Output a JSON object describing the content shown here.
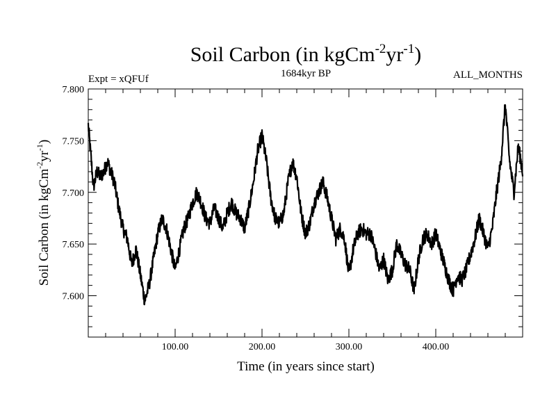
{
  "chart_data": {
    "type": "line",
    "title": "Soil Carbon (in kgCm",
    "title_sup1": "-2",
    "title_mid": "yr",
    "title_sup2": "-1",
    "title_end": ")",
    "subtitle_left": "Expt = xQFUf",
    "subtitle_center": "1684kyr BP",
    "subtitle_right": "ALL_MONTHS",
    "xlabel": "Time (in years since start)",
    "ylabel": "Soil Carbon (in kgCm",
    "ylabel_sup1": "-2",
    "ylabel_mid": "yr",
    "ylabel_sup2": "-1",
    "ylabel_end": ")",
    "xlim": [
      0,
      500
    ],
    "ylim": [
      7.56,
      7.8
    ],
    "x_ticks": [
      {
        "value": 100,
        "label": "100.00"
      },
      {
        "value": 200,
        "label": "200.00"
      },
      {
        "value": 300,
        "label": "300.00"
      },
      {
        "value": 400,
        "label": "400.00"
      }
    ],
    "y_ticks": [
      {
        "value": 7.6,
        "label": "7.600"
      },
      {
        "value": 7.65,
        "label": "7.650"
      },
      {
        "value": 7.7,
        "label": "7.700"
      },
      {
        "value": 7.75,
        "label": "7.750"
      },
      {
        "value": 7.8,
        "label": "7.800"
      }
    ],
    "series": [
      {
        "name": "Soil Carbon",
        "color": "#000000",
        "x": [
          0,
          3,
          6,
          10,
          14,
          18,
          22,
          26,
          30,
          35,
          40,
          45,
          50,
          55,
          60,
          65,
          70,
          75,
          80,
          85,
          90,
          95,
          100,
          105,
          110,
          115,
          120,
          125,
          130,
          135,
          140,
          145,
          150,
          155,
          160,
          165,
          170,
          175,
          180,
          185,
          190,
          195,
          200,
          205,
          210,
          215,
          220,
          225,
          230,
          235,
          240,
          245,
          250,
          255,
          260,
          265,
          270,
          275,
          280,
          285,
          290,
          295,
          300,
          305,
          310,
          315,
          320,
          325,
          330,
          335,
          340,
          345,
          350,
          355,
          360,
          365,
          370,
          375,
          380,
          385,
          390,
          395,
          400,
          405,
          410,
          415,
          420,
          425,
          430,
          435,
          440,
          445,
          450,
          455,
          460,
          465,
          470,
          475,
          480,
          485,
          490,
          495,
          500
        ],
        "values": [
          7.765,
          7.735,
          7.705,
          7.72,
          7.715,
          7.72,
          7.73,
          7.72,
          7.71,
          7.685,
          7.665,
          7.655,
          7.63,
          7.645,
          7.62,
          7.595,
          7.61,
          7.635,
          7.66,
          7.675,
          7.665,
          7.645,
          7.625,
          7.645,
          7.665,
          7.675,
          7.69,
          7.7,
          7.69,
          7.675,
          7.67,
          7.685,
          7.675,
          7.665,
          7.68,
          7.69,
          7.68,
          7.675,
          7.665,
          7.685,
          7.71,
          7.74,
          7.755,
          7.73,
          7.695,
          7.675,
          7.67,
          7.68,
          7.71,
          7.73,
          7.715,
          7.68,
          7.66,
          7.67,
          7.69,
          7.7,
          7.71,
          7.695,
          7.675,
          7.655,
          7.665,
          7.655,
          7.62,
          7.645,
          7.66,
          7.665,
          7.66,
          7.66,
          7.645,
          7.625,
          7.635,
          7.615,
          7.625,
          7.65,
          7.64,
          7.63,
          7.625,
          7.605,
          7.635,
          7.655,
          7.66,
          7.65,
          7.66,
          7.645,
          7.63,
          7.615,
          7.605,
          7.62,
          7.615,
          7.625,
          7.64,
          7.655,
          7.675,
          7.66,
          7.645,
          7.665,
          7.7,
          7.73,
          7.785,
          7.73,
          7.7,
          7.745,
          7.72
        ]
      }
    ]
  }
}
